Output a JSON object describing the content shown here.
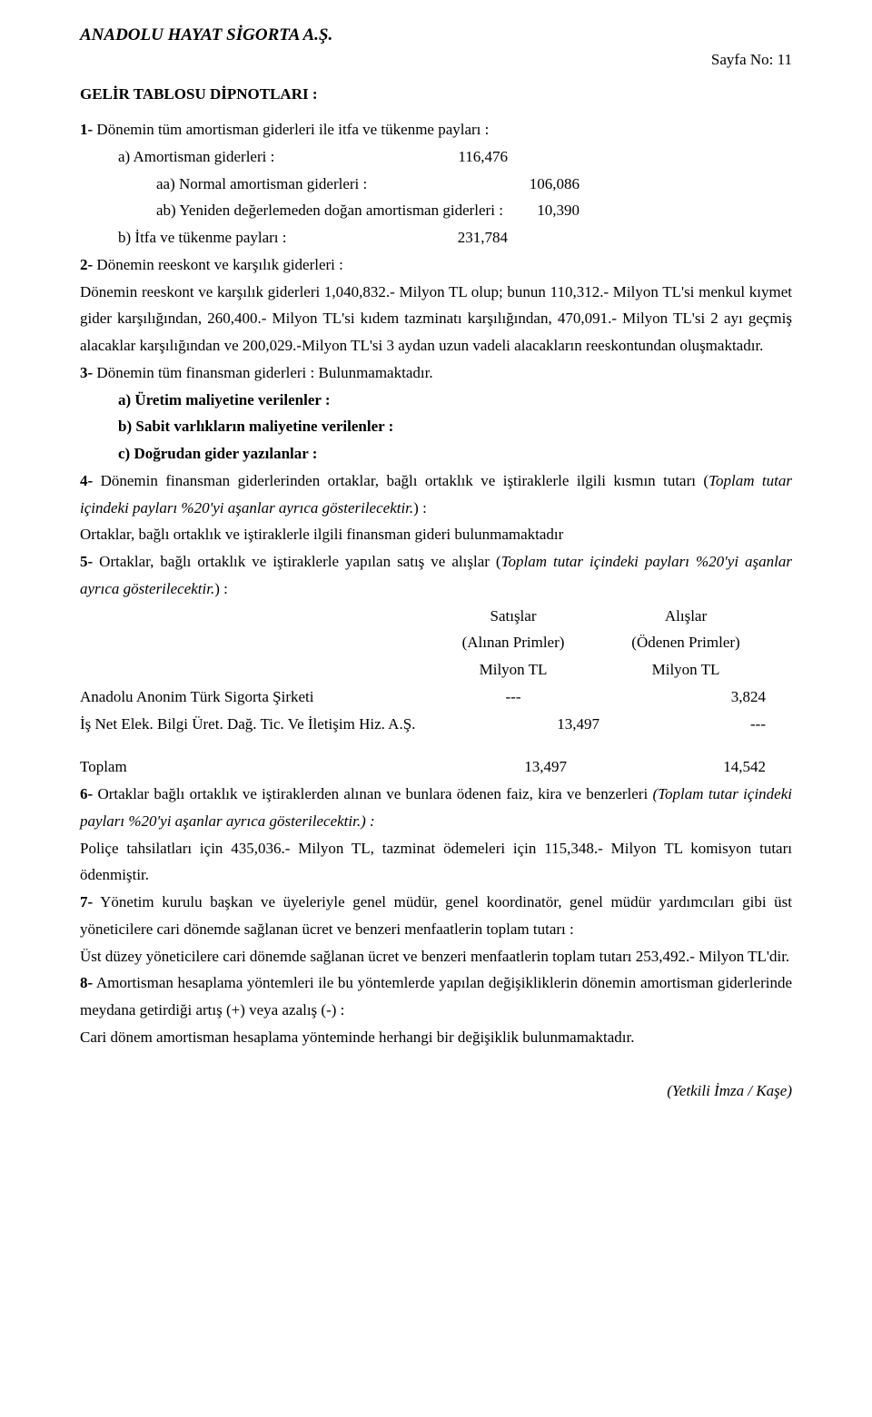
{
  "header": {
    "company": "ANADOLU HAYAT SİGORTA A.Ş.",
    "pageNo": "Sayfa No: 11"
  },
  "sectionTitle": "GELİR TABLOSU DİPNOTLARI :",
  "n1": {
    "lead": "1-",
    "text": " Dönemin tüm amortisman giderleri ile itfa ve tükenme payları :",
    "a_label": "a) Amortisman giderleri :",
    "a_val": "116,476",
    "aa_label": "aa) Normal amortisman giderleri :",
    "aa_val": "106,086",
    "ab_label": "ab) Yeniden değerlemeden doğan amortisman giderleri :",
    "ab_val": "10,390",
    "b_label": "b) İtfa ve tükenme payları :",
    "b_val": "231,784"
  },
  "n2": {
    "lead": "2-",
    "text": " Dönemin reeskont ve karşılık giderleri :",
    "para": "Dönemin reeskont ve karşılık giderleri 1,040,832.- Milyon TL olup; bunun 110,312.- Milyon TL'si menkul kıymet gider karşılığından, 260,400.- Milyon TL'si kıdem tazminatı karşılığından, 470,091.- Milyon TL'si 2 ayı geçmiş alacaklar karşılığından ve 200,029.-Milyon TL'si 3 aydan uzun vadeli alacakların reeskontundan oluşmaktadır."
  },
  "n3": {
    "lead": "3-",
    "text": " Dönemin tüm finansman giderleri : Bulunmamaktadır.",
    "a": "a) Üretim maliyetine verilenler :",
    "b": "b) Sabit varlıkların maliyetine verilenler :",
    "c": "c) Doğrudan gider yazılanlar :"
  },
  "n4": {
    "lead": "4-",
    "text1": " Dönemin finansman giderlerinden ortaklar, bağlı ortaklık ve iştiraklerle ilgili kısmın tutarı (",
    "italic": "Toplam tutar içindeki payları %20'yi aşanlar ayrıca gösterilecektir.",
    "text2": ") :",
    "para": "Ortaklar, bağlı ortaklık ve iştiraklerle ilgili finansman gideri bulunmamaktadır"
  },
  "n5": {
    "lead": "5-",
    "text1": " Ortaklar, bağlı ortaklık ve iştiraklerle yapılan satış ve alışlar (",
    "italic": "Toplam tutar içindeki payları %20'yi aşanlar ayrıca gösterilecektir.",
    "text2": ") :",
    "colSat": "Satışlar",
    "colAlis": "Alışlar",
    "colSatSub": "(Alınan Primler)",
    "colAlisSub": "(Ödenen Primler)",
    "unit": "Milyon TL",
    "r1_name": "Anadolu Anonim Türk Sigorta Şirketi",
    "r1_s": "---",
    "r1_a": "3,824",
    "r2_name": "İş Net Elek. Bilgi Üret. Dağ. Tic. Ve İletişim Hiz. A.Ş.",
    "r2_s": "13,497",
    "r2_a": "---",
    "tot_name": "Toplam",
    "tot_s": "13,497",
    "tot_a": "14,542"
  },
  "n6": {
    "lead": "6-",
    "text1": " Ortaklar bağlı ortaklık ve iştiraklerden alınan ve bunlara ödenen faiz, kira ve benzerleri ",
    "italic": "(Toplam tutar içindeki payları %20'yi aşanlar ayrıca gösterilecektir.) :",
    "para": "Poliçe tahsilatları için 435,036.- Milyon TL, tazminat ödemeleri için 115,348.- Milyon TL komisyon tutarı ödenmiştir."
  },
  "n7": {
    "lead": "7-",
    "text": " Yönetim kurulu başkan ve üyeleriyle genel müdür, genel koordinatör, genel müdür yardımcıları gibi üst yöneticilere cari dönemde sağlanan ücret ve benzeri menfaatlerin toplam tutarı :",
    "para": "Üst düzey yöneticilere cari dönemde sağlanan ücret ve benzeri menfaatlerin toplam tutarı 253,492.- Milyon TL'dir."
  },
  "n8": {
    "lead": "8-",
    "text": " Amortisman hesaplama yöntemleri ile bu yöntemlerde yapılan değişikliklerin dönemin amortisman giderlerinde meydana getirdiği artış (+) veya azalış (-) :",
    "para": "Cari dönem amortisman hesaplama yönteminde herhangi bir değişiklik bulunmamaktadır."
  },
  "footer": "(Yetkili İmza / Kaşe)"
}
